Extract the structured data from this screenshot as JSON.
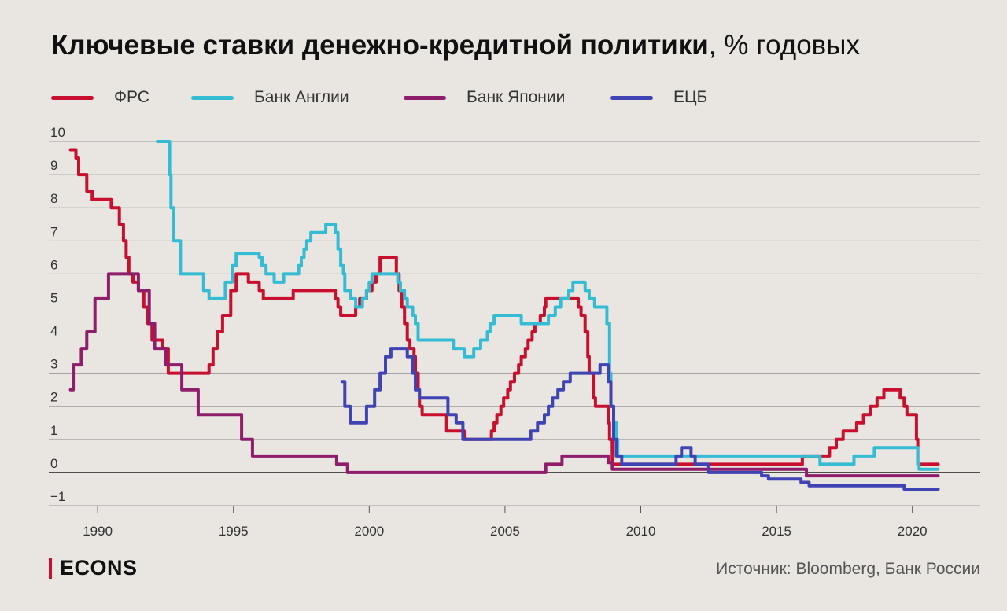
{
  "title_bold": "Ключевые ставки денежно-кредитной политики",
  "title_regular": ", % годовых",
  "brand": "ECONS",
  "source": "Источник: Bloomberg, Банк России",
  "colors": {
    "background": "#e9e6e1",
    "fed": "#c8102e",
    "boe": "#34bcd4",
    "boj": "#8e1d6b",
    "ecb": "#4043b4",
    "brand_accent": "#c8102e"
  },
  "chart_data": {
    "type": "line",
    "title": "Ключевые ставки денежно-кредитной политики, % годовых",
    "xlabel": "",
    "ylabel": "",
    "xlim": [
      1988.2,
      2022.5
    ],
    "ylim": [
      -1,
      10
    ],
    "x_ticks": [
      1990,
      1995,
      2000,
      2005,
      2010,
      2015,
      2020
    ],
    "y_ticks": [
      10,
      9,
      8,
      7,
      6,
      5,
      4,
      3,
      2,
      1,
      0,
      -1
    ],
    "y_tick_labels": [
      "10",
      "9",
      "8",
      "7",
      "6",
      "5",
      "4",
      "3",
      "2",
      "1",
      "0",
      "−1"
    ],
    "grid": true,
    "legend_position": "top",
    "series": [
      {
        "name": "ФРС",
        "color": "#c8102e",
        "points": [
          [
            1989.0,
            9.75
          ],
          [
            1989.2,
            9.5
          ],
          [
            1989.3,
            9.0
          ],
          [
            1989.6,
            8.5
          ],
          [
            1989.8,
            8.25
          ],
          [
            1990.3,
            8.25
          ],
          [
            1990.5,
            8.0
          ],
          [
            1990.8,
            7.5
          ],
          [
            1990.95,
            7.0
          ],
          [
            1991.05,
            6.5
          ],
          [
            1991.15,
            6.0
          ],
          [
            1991.3,
            5.75
          ],
          [
            1991.5,
            5.5
          ],
          [
            1991.7,
            5.0
          ],
          [
            1991.85,
            4.5
          ],
          [
            1992.0,
            4.0
          ],
          [
            1992.4,
            3.75
          ],
          [
            1992.6,
            3.0
          ],
          [
            1994.0,
            3.0
          ],
          [
            1994.1,
            3.25
          ],
          [
            1994.25,
            3.75
          ],
          [
            1994.4,
            4.25
          ],
          [
            1994.6,
            4.75
          ],
          [
            1994.9,
            5.5
          ],
          [
            1995.1,
            6.0
          ],
          [
            1995.55,
            5.75
          ],
          [
            1995.95,
            5.5
          ],
          [
            1996.1,
            5.25
          ],
          [
            1997.2,
            5.5
          ],
          [
            1998.75,
            5.25
          ],
          [
            1998.85,
            5.0
          ],
          [
            1998.95,
            4.75
          ],
          [
            1999.5,
            5.0
          ],
          [
            1999.65,
            5.25
          ],
          [
            1999.9,
            5.5
          ],
          [
            2000.1,
            5.75
          ],
          [
            2000.25,
            6.0
          ],
          [
            2000.4,
            6.5
          ],
          [
            2001.0,
            6.0
          ],
          [
            2001.1,
            5.5
          ],
          [
            2001.2,
            5.0
          ],
          [
            2001.3,
            4.5
          ],
          [
            2001.4,
            4.0
          ],
          [
            2001.5,
            3.75
          ],
          [
            2001.65,
            3.5
          ],
          [
            2001.7,
            3.0
          ],
          [
            2001.8,
            2.5
          ],
          [
            2001.85,
            2.0
          ],
          [
            2001.95,
            1.75
          ],
          [
            2002.85,
            1.25
          ],
          [
            2003.5,
            1.0
          ],
          [
            2004.5,
            1.25
          ],
          [
            2004.6,
            1.5
          ],
          [
            2004.7,
            1.75
          ],
          [
            2004.85,
            2.0
          ],
          [
            2004.95,
            2.25
          ],
          [
            2005.1,
            2.5
          ],
          [
            2005.2,
            2.75
          ],
          [
            2005.35,
            3.0
          ],
          [
            2005.5,
            3.25
          ],
          [
            2005.6,
            3.5
          ],
          [
            2005.75,
            3.75
          ],
          [
            2005.85,
            4.0
          ],
          [
            2006.0,
            4.25
          ],
          [
            2006.1,
            4.5
          ],
          [
            2006.3,
            4.75
          ],
          [
            2006.45,
            5.0
          ],
          [
            2006.5,
            5.25
          ],
          [
            2007.7,
            5.0
          ],
          [
            2007.8,
            4.75
          ],
          [
            2007.95,
            4.25
          ],
          [
            2008.05,
            3.5
          ],
          [
            2008.1,
            3.0
          ],
          [
            2008.25,
            2.25
          ],
          [
            2008.33,
            2.0
          ],
          [
            2008.8,
            1.5
          ],
          [
            2008.85,
            1.0
          ],
          [
            2008.95,
            0.25
          ],
          [
            2015.95,
            0.5
          ],
          [
            2016.95,
            0.75
          ],
          [
            2017.2,
            1.0
          ],
          [
            2017.45,
            1.25
          ],
          [
            2017.95,
            1.5
          ],
          [
            2018.2,
            1.75
          ],
          [
            2018.45,
            2.0
          ],
          [
            2018.7,
            2.25
          ],
          [
            2018.95,
            2.5
          ],
          [
            2019.55,
            2.25
          ],
          [
            2019.7,
            2.0
          ],
          [
            2019.8,
            1.75
          ],
          [
            2020.15,
            1.0
          ],
          [
            2020.2,
            0.25
          ],
          [
            2020.95,
            0.25
          ]
        ]
      },
      {
        "name": "Банк Англии",
        "color": "#34bcd4",
        "points": [
          [
            1992.2,
            10.0
          ],
          [
            1992.6,
            10.0
          ],
          [
            1992.65,
            9.0
          ],
          [
            1992.7,
            8.0
          ],
          [
            1992.8,
            7.0
          ],
          [
            1993.05,
            6.0
          ],
          [
            1993.9,
            5.5
          ],
          [
            1994.1,
            5.25
          ],
          [
            1994.7,
            5.75
          ],
          [
            1994.95,
            6.25
          ],
          [
            1995.1,
            6.625
          ],
          [
            1995.95,
            6.5
          ],
          [
            1996.05,
            6.25
          ],
          [
            1996.2,
            6.0
          ],
          [
            1996.5,
            5.75
          ],
          [
            1996.85,
            6.0
          ],
          [
            1997.4,
            6.25
          ],
          [
            1997.5,
            6.5
          ],
          [
            1997.6,
            6.75
          ],
          [
            1997.7,
            7.0
          ],
          [
            1997.85,
            7.25
          ],
          [
            1998.4,
            7.5
          ],
          [
            1998.75,
            7.25
          ],
          [
            1998.85,
            6.75
          ],
          [
            1998.95,
            6.25
          ],
          [
            1999.05,
            6.0
          ],
          [
            1999.1,
            5.5
          ],
          [
            1999.3,
            5.25
          ],
          [
            1999.5,
            5.0
          ],
          [
            1999.75,
            5.25
          ],
          [
            1999.9,
            5.5
          ],
          [
            2000.0,
            5.75
          ],
          [
            2000.1,
            6.0
          ],
          [
            2001.05,
            5.75
          ],
          [
            2001.15,
            5.5
          ],
          [
            2001.3,
            5.25
          ],
          [
            2001.4,
            5.0
          ],
          [
            2001.6,
            4.75
          ],
          [
            2001.7,
            4.5
          ],
          [
            2001.8,
            4.0
          ],
          [
            2003.1,
            3.75
          ],
          [
            2003.5,
            3.5
          ],
          [
            2003.85,
            3.75
          ],
          [
            2004.1,
            4.0
          ],
          [
            2004.35,
            4.25
          ],
          [
            2004.45,
            4.5
          ],
          [
            2004.6,
            4.75
          ],
          [
            2005.6,
            4.5
          ],
          [
            2006.6,
            4.75
          ],
          [
            2006.85,
            5.0
          ],
          [
            2007.05,
            5.25
          ],
          [
            2007.35,
            5.5
          ],
          [
            2007.5,
            5.75
          ],
          [
            2007.95,
            5.5
          ],
          [
            2008.1,
            5.25
          ],
          [
            2008.3,
            5.0
          ],
          [
            2008.75,
            4.5
          ],
          [
            2008.85,
            3.0
          ],
          [
            2008.9,
            2.0
          ],
          [
            2009.0,
            1.5
          ],
          [
            2009.1,
            1.0
          ],
          [
            2009.15,
            0.5
          ],
          [
            2016.6,
            0.25
          ],
          [
            2017.85,
            0.5
          ],
          [
            2018.6,
            0.75
          ],
          [
            2020.2,
            0.25
          ],
          [
            2020.25,
            0.1
          ],
          [
            2020.95,
            0.1
          ]
        ]
      },
      {
        "name": "Банк Японии",
        "color": "#8e1d6b",
        "points": [
          [
            1989.0,
            2.5
          ],
          [
            1989.1,
            3.25
          ],
          [
            1989.4,
            3.75
          ],
          [
            1989.6,
            4.25
          ],
          [
            1989.9,
            5.25
          ],
          [
            1990.4,
            6.0
          ],
          [
            1991.5,
            5.5
          ],
          [
            1991.9,
            4.5
          ],
          [
            1992.1,
            3.75
          ],
          [
            1992.5,
            3.25
          ],
          [
            1993.1,
            2.5
          ],
          [
            1993.7,
            1.75
          ],
          [
            1995.3,
            1.0
          ],
          [
            1995.7,
            0.5
          ],
          [
            1998.8,
            0.25
          ],
          [
            1999.2,
            0.0
          ],
          [
            2006.5,
            0.25
          ],
          [
            2007.1,
            0.5
          ],
          [
            2008.8,
            0.3
          ],
          [
            2008.95,
            0.1
          ],
          [
            2016.1,
            -0.1
          ],
          [
            2020.95,
            -0.1
          ]
        ]
      },
      {
        "name": "ЕЦБ",
        "color": "#4043b4",
        "points": [
          [
            1999.0,
            2.75
          ],
          [
            1999.1,
            2.0
          ],
          [
            1999.3,
            1.5
          ],
          [
            1999.9,
            2.0
          ],
          [
            2000.2,
            2.5
          ],
          [
            2000.4,
            3.0
          ],
          [
            2000.6,
            3.5
          ],
          [
            2000.8,
            3.75
          ],
          [
            2001.4,
            3.5
          ],
          [
            2001.6,
            3.0
          ],
          [
            2001.7,
            2.5
          ],
          [
            2001.85,
            2.25
          ],
          [
            2002.9,
            1.75
          ],
          [
            2003.2,
            1.5
          ],
          [
            2003.45,
            1.0
          ],
          [
            2005.95,
            1.25
          ],
          [
            2006.2,
            1.5
          ],
          [
            2006.45,
            1.75
          ],
          [
            2006.6,
            2.0
          ],
          [
            2006.75,
            2.25
          ],
          [
            2006.95,
            2.5
          ],
          [
            2007.15,
            2.75
          ],
          [
            2007.4,
            3.0
          ],
          [
            2008.5,
            3.25
          ],
          [
            2008.8,
            2.75
          ],
          [
            2008.9,
            2.0
          ],
          [
            2009.0,
            1.0
          ],
          [
            2009.1,
            0.5
          ],
          [
            2009.3,
            0.25
          ],
          [
            2011.3,
            0.5
          ],
          [
            2011.5,
            0.75
          ],
          [
            2011.85,
            0.5
          ],
          [
            2012.0,
            0.25
          ],
          [
            2012.5,
            0.0
          ],
          [
            2014.45,
            -0.1
          ],
          [
            2014.7,
            -0.2
          ],
          [
            2015.9,
            -0.3
          ],
          [
            2016.2,
            -0.4
          ],
          [
            2019.7,
            -0.5
          ],
          [
            2020.95,
            -0.5
          ]
        ]
      }
    ]
  }
}
